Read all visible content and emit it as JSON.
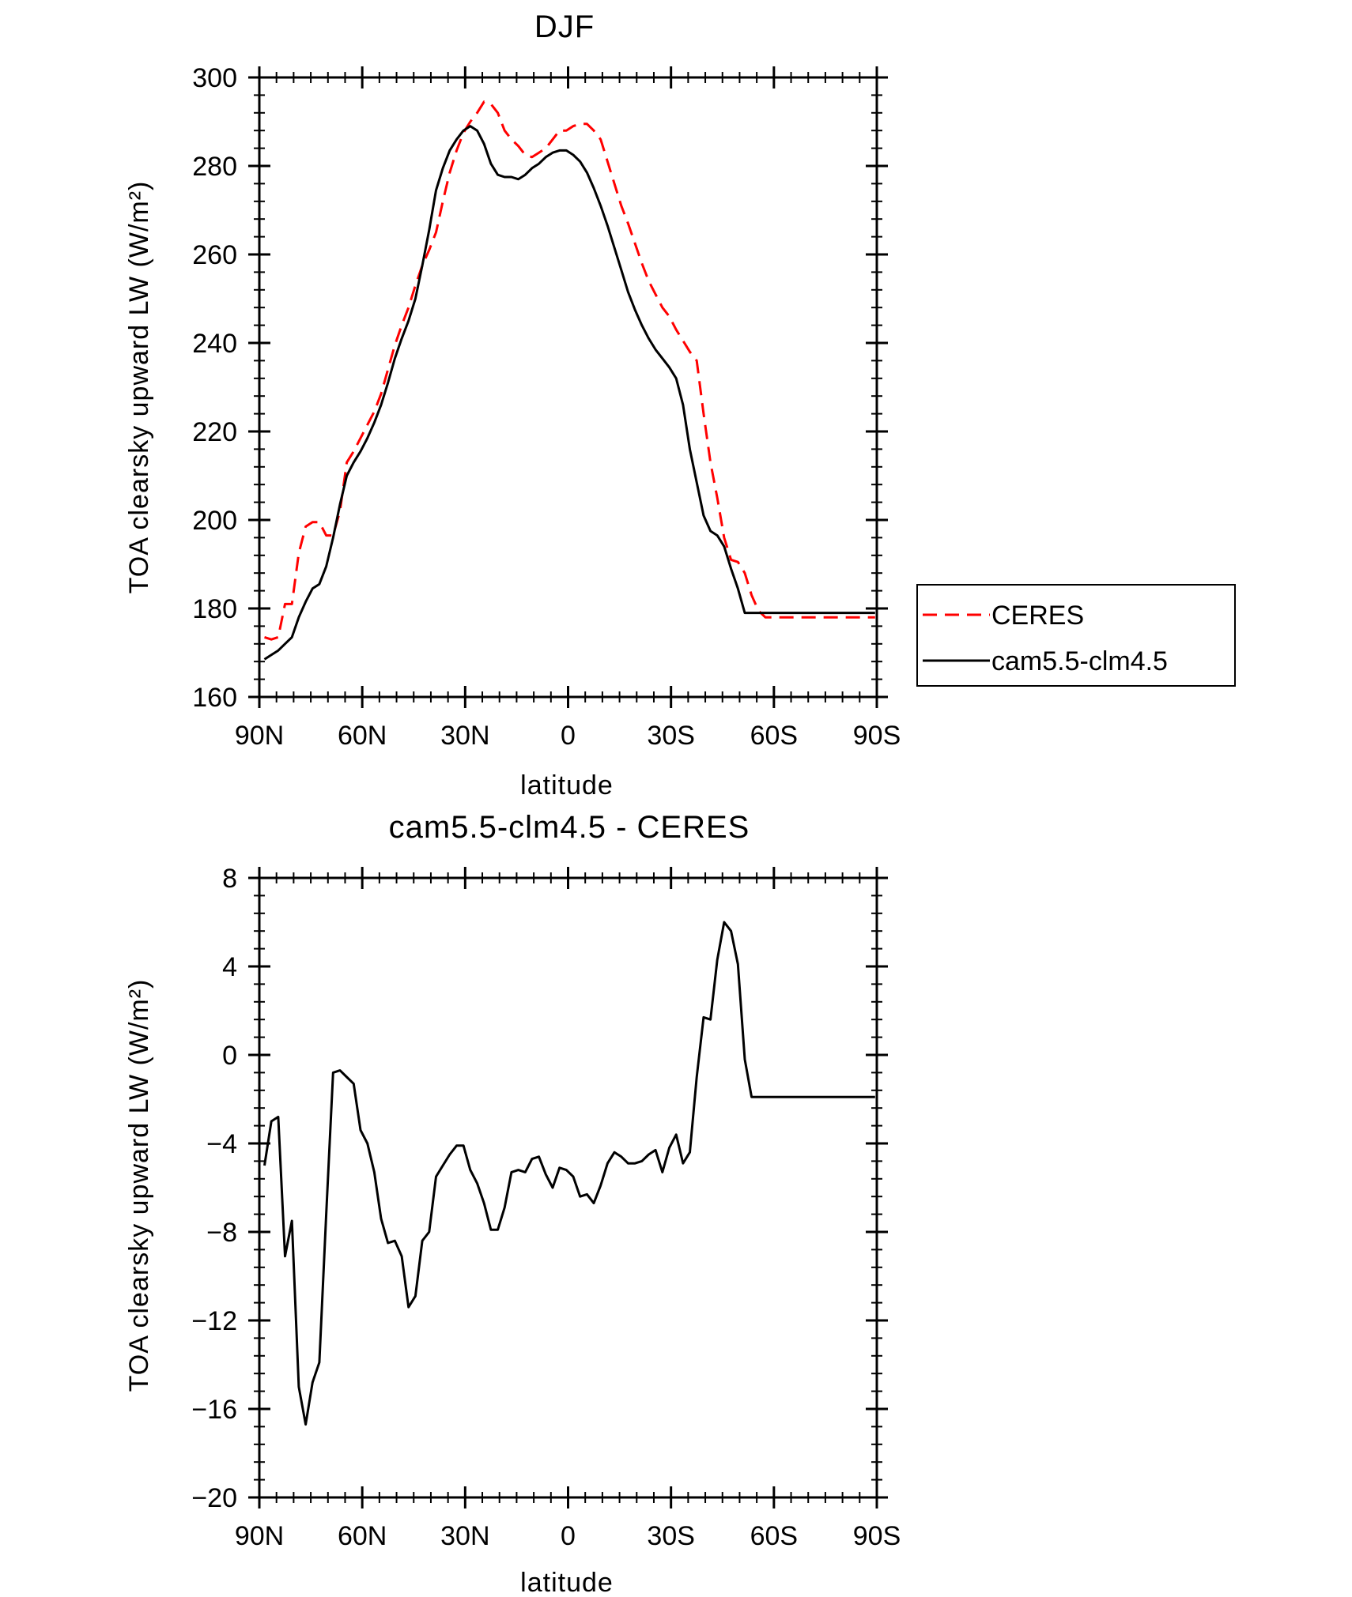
{
  "chart_data": [
    {
      "type": "line",
      "title": "DJF",
      "xlabel": "latitude",
      "ylabel": "TOA clearsky upward LW (W/m²)",
      "ylim": [
        160,
        300
      ],
      "yticks": [
        160,
        180,
        200,
        220,
        240,
        260,
        280,
        300
      ],
      "xlim": [
        90,
        -90
      ],
      "xtick_labels": [
        "90N",
        "60N",
        "30N",
        "0",
        "30S",
        "60S",
        "90S"
      ],
      "grid": false,
      "legend": "right",
      "series": [
        {
          "name": "CERES",
          "color": "#ff0000",
          "dash": "dashed",
          "x": [
            88.5,
            86.5,
            84.5,
            82.5,
            80.5,
            78.5,
            76.5,
            74.5,
            72.5,
            70.5,
            68.5,
            66.5,
            64.5,
            62.5,
            60.5,
            58.5,
            56.5,
            54.5,
            52.5,
            50.5,
            48.5,
            46.5,
            44.5,
            42.5,
            40.5,
            38.5,
            36.5,
            34.5,
            32.5,
            30.5,
            28.5,
            26.5,
            24.5,
            22.5,
            20.5,
            18.5,
            16.5,
            14.5,
            12.5,
            10.5,
            8.5,
            6.5,
            4.5,
            2.5,
            0.5,
            -1.5,
            -3.5,
            -5.5,
            -7.5,
            -9.5,
            -11.5,
            -13.5,
            -15.5,
            -17.5,
            -19.5,
            -21.5,
            -23.5,
            -25.5,
            -27.5,
            -29.5,
            -31.5,
            -33.5,
            -35.5,
            -37.5,
            -39.5,
            -41.5,
            -43.5,
            -45.5,
            -47.5,
            -49.5,
            -51.5,
            -53.5,
            -55.5,
            -57.5,
            -59.5,
            -61.5,
            -63.5,
            -65.5,
            -67.5,
            -69.5,
            -71.5,
            -73.5,
            -75.5,
            -77.5,
            -79.5,
            -81.5,
            -83.5,
            -85.5,
            -87.5,
            -89.5
          ],
          "values": [
            173.5,
            173,
            173.5,
            181,
            181,
            192.5,
            198.5,
            199.5,
            199.5,
            196.5,
            196.5,
            202,
            213,
            215.5,
            218.5,
            221.5,
            224.5,
            228.5,
            234,
            239.5,
            244,
            248,
            253,
            257.5,
            261,
            265,
            272,
            278.5,
            283.5,
            287.5,
            290,
            292,
            294.5,
            294,
            292,
            288,
            286,
            284.5,
            282.5,
            282,
            283,
            284,
            286,
            288,
            288,
            289,
            289.5,
            289.5,
            288,
            286,
            281,
            276,
            271,
            267,
            262.5,
            258,
            254,
            251,
            248,
            246,
            243,
            240.5,
            238,
            236,
            224,
            213,
            205,
            196,
            191,
            190.5,
            188,
            183,
            179.5,
            178,
            178,
            178,
            178,
            178,
            178,
            178,
            178,
            178,
            178,
            178,
            178,
            178,
            178,
            178,
            178,
            178
          ]
        },
        {
          "name": "cam5.5-clm4.5",
          "color": "#000000",
          "dash": "solid",
          "x": [
            88.5,
            86.5,
            84.5,
            82.5,
            80.5,
            78.5,
            76.5,
            74.5,
            72.5,
            70.5,
            68.5,
            66.5,
            64.5,
            62.5,
            60.5,
            58.5,
            56.5,
            54.5,
            52.5,
            50.5,
            48.5,
            46.5,
            44.5,
            42.5,
            40.5,
            38.5,
            36.5,
            34.5,
            32.5,
            30.5,
            28.5,
            26.5,
            24.5,
            22.5,
            20.5,
            18.5,
            16.5,
            14.5,
            12.5,
            10.5,
            8.5,
            6.5,
            4.5,
            2.5,
            0.5,
            -1.5,
            -3.5,
            -5.5,
            -7.5,
            -9.5,
            -11.5,
            -13.5,
            -15.5,
            -17.5,
            -19.5,
            -21.5,
            -23.5,
            -25.5,
            -27.5,
            -29.5,
            -31.5,
            -33.5,
            -35.5,
            -37.5,
            -39.5,
            -41.5,
            -43.5,
            -45.5,
            -47.5,
            -49.5,
            -51.5,
            -53.5,
            -55.5,
            -57.5,
            -59.5,
            -61.5,
            -63.5,
            -65.5,
            -67.5,
            -69.5,
            -71.5,
            -73.5,
            -75.5,
            -77.5,
            -79.5,
            -81.5,
            -83.5,
            -85.5,
            -87.5,
            -89.5
          ],
          "values": [
            168.5,
            169.5,
            170.5,
            172,
            173.5,
            178,
            181.5,
            184.5,
            185.5,
            189.5,
            196,
            203.5,
            210,
            213,
            215.5,
            218.5,
            222,
            226,
            231,
            236.5,
            241,
            245,
            250,
            257.5,
            265.5,
            274.5,
            279.5,
            283.5,
            286,
            288,
            289,
            288,
            285,
            280.5,
            278,
            277.5,
            277.5,
            277,
            278,
            279.5,
            280.5,
            282,
            283,
            283.5,
            283.5,
            282.5,
            281,
            278.5,
            275,
            271,
            266.5,
            261.5,
            256.5,
            251.5,
            247.5,
            244,
            241,
            238.5,
            236.5,
            234.5,
            232,
            226,
            216,
            208.5,
            201,
            197.5,
            196.5,
            194,
            189,
            184.5,
            179,
            179,
            179,
            179,
            179,
            179,
            179,
            179,
            179,
            179,
            179,
            179,
            179,
            179,
            179,
            179,
            179,
            179,
            179,
            179
          ]
        }
      ]
    },
    {
      "type": "line",
      "title": "cam5.5-clm4.5 - CERES",
      "xlabel": "latitude",
      "ylabel": "TOA clearsky upward LW (W/m²)",
      "ylim": [
        -20,
        8
      ],
      "yticks": [
        -20,
        -16,
        -12,
        -8,
        -4,
        0,
        4,
        8
      ],
      "xlim": [
        90,
        -90
      ],
      "xtick_labels": [
        "90N",
        "60N",
        "30N",
        "0",
        "30S",
        "60S",
        "90S"
      ],
      "grid": false,
      "series": [
        {
          "color": "#000000",
          "dash": "solid",
          "x": [
            88.5,
            86.5,
            84.5,
            82.5,
            80.5,
            78.5,
            76.5,
            74.5,
            72.5,
            70.5,
            68.5,
            66.5,
            64.5,
            62.5,
            60.5,
            58.5,
            56.5,
            54.5,
            52.5,
            50.5,
            48.5,
            46.5,
            44.5,
            42.5,
            40.5,
            38.5,
            36.5,
            34.5,
            32.5,
            30.5,
            28.5,
            26.5,
            24.5,
            22.5,
            20.5,
            18.5,
            16.5,
            14.5,
            12.5,
            10.5,
            8.5,
            6.5,
            4.5,
            2.5,
            0.5,
            -1.5,
            -3.5,
            -5.5,
            -7.5,
            -9.5,
            -11.5,
            -13.5,
            -15.5,
            -17.5,
            -19.5,
            -21.5,
            -23.5,
            -25.5,
            -27.5,
            -29.5,
            -31.5,
            -33.5,
            -35.5,
            -37.5,
            -39.5,
            -41.5,
            -43.5,
            -45.5,
            -47.5,
            -49.5,
            -51.5,
            -53.5,
            -55.5,
            -57.5,
            -59.5,
            -61.5,
            -63.5,
            -65.5,
            -67.5,
            -69.5,
            -71.5,
            -73.5,
            -75.5,
            -77.5,
            -79.5,
            -81.5,
            -83.5,
            -85.5,
            -87.5,
            -89.5
          ],
          "values": [
            -5,
            -3,
            -2.8,
            -9.1,
            -7.5,
            -15,
            -16.7,
            -14.8,
            -13.9,
            -7.2,
            -0.8,
            -0.7,
            -1,
            -1.3,
            -3.4,
            -4,
            -5.3,
            -7.4,
            -8.5,
            -8.4,
            -9.1,
            -11.4,
            -10.9,
            -8.4,
            -8,
            -5.5,
            -5,
            -4.5,
            -4.1,
            -4.1,
            -5.2,
            -5.8,
            -6.7,
            -7.9,
            -7.9,
            -6.9,
            -5.3,
            -5.2,
            -5.3,
            -4.7,
            -4.6,
            -5.4,
            -6,
            -5.1,
            -5.2,
            -5.5,
            -6.4,
            -6.3,
            -6.7,
            -5.9,
            -4.9,
            -4.4,
            -4.6,
            -4.9,
            -4.9,
            -4.8,
            -4.5,
            -4.3,
            -5.3,
            -4.2,
            -3.6,
            -4.9,
            -4.4,
            -1,
            1.7,
            1.6,
            4.3,
            6,
            5.6,
            4.1,
            -0.2,
            -1.9,
            -1.9,
            -1.9,
            -1.9,
            -1.9,
            -1.9,
            -1.9,
            -1.9,
            -1.9,
            -1.9,
            -1.9,
            -1.9,
            -1.9,
            -1.9,
            -1.9,
            -1.9,
            -1.9,
            -1.9,
            -1.9
          ]
        }
      ]
    }
  ]
}
